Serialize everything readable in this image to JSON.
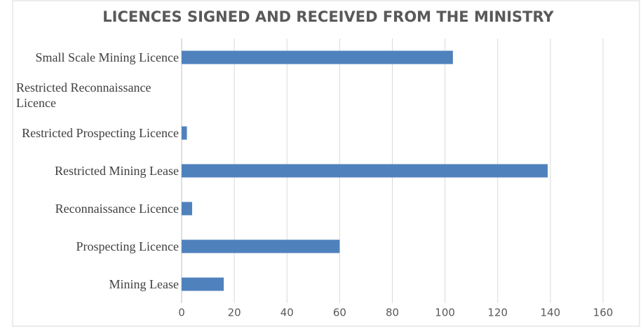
{
  "chart_data": {
    "type": "bar",
    "orientation": "horizontal",
    "title": "LICENCES SIGNED AND RECEIVED FROM THE MINISTRY",
    "categories": [
      "Small Scale Mining Licence",
      "Restricted Reconnaissance Licence",
      "Restricted Prospecting Licence",
      "Restricted Mining Lease",
      "Reconnaissance Licence",
      "Prospecting Licence",
      "Mining Lease"
    ],
    "values": [
      103,
      0,
      2,
      139,
      4,
      60,
      16
    ],
    "color": "#4f81bd",
    "xlim": [
      0,
      160
    ],
    "xticks": [
      0,
      20,
      40,
      60,
      80,
      100,
      120,
      140,
      160
    ],
    "grid": true
  }
}
